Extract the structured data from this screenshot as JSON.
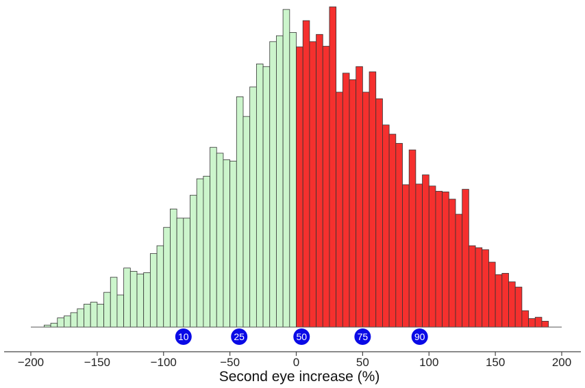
{
  "chart_data": {
    "type": "bar",
    "subtype": "histogram",
    "title": "",
    "xlabel": "Second eye increase (%)",
    "ylabel": "",
    "xlim": [
      -200,
      200
    ],
    "ylim": [
      0,
      470
    ],
    "x_ticks": [
      -200,
      -150,
      -100,
      -50,
      0,
      50,
      100,
      150,
      200
    ],
    "x_tick_labels": [
      "−200",
      "−150",
      "−100",
      "−50",
      "0",
      "50",
      "100",
      "150",
      "200"
    ],
    "y_axis_visible": false,
    "grid": false,
    "legend": "none",
    "bin_width": 5,
    "bin_edges_start": -190,
    "colors": {
      "negative_fill": "#ccf5cc",
      "positive_fill": "#f5302e",
      "bar_stroke": "#333333",
      "marker_fill": "#0a0ae6",
      "axis": "#444444"
    },
    "series": [
      {
        "x": [
          -190,
          -185,
          -180,
          -175,
          -170,
          -165,
          -160,
          -155,
          -150,
          -145,
          -140,
          -135,
          -130,
          -125,
          -120,
          -115,
          -110,
          -105,
          -100,
          -95,
          -90,
          -85,
          -80,
          -75,
          -70,
          -65,
          -60,
          -55,
          -50,
          -45,
          -40,
          -35,
          -30,
          -25,
          -20,
          -15,
          -10,
          -5
        ],
        "values": [
          3,
          6,
          14,
          17,
          22,
          28,
          35,
          38,
          35,
          53,
          76,
          49,
          90,
          85,
          81,
          83,
          112,
          124,
          152,
          180,
          166,
          166,
          201,
          226,
          230,
          274,
          265,
          255,
          253,
          351,
          321,
          366,
          401,
          397,
          435,
          444,
          484,
          449
        ]
      },
      {
        "x": [
          0,
          5,
          10,
          15,
          20,
          25,
          30,
          35,
          40,
          45,
          50,
          55,
          60,
          65,
          70,
          75,
          80,
          85,
          90,
          95,
          100,
          105,
          110,
          115,
          120,
          125,
          130,
          135,
          140,
          145,
          150,
          155,
          160,
          165,
          170,
          175,
          180,
          185
        ],
        "values": [
          427,
          467,
          435,
          446,
          428,
          488,
          358,
          387,
          377,
          397,
          358,
          389,
          348,
          308,
          294,
          280,
          217,
          270,
          218,
          232,
          215,
          207,
          206,
          195,
          172,
          210,
          124,
          121,
          118,
          99,
          80,
          82,
          69,
          61,
          25,
          13,
          15,
          9
        ]
      }
    ],
    "percentile_markers": [
      {
        "label": "10",
        "x": -85
      },
      {
        "label": "25",
        "x": -43
      },
      {
        "label": "50",
        "x": 4
      },
      {
        "label": "75",
        "x": 50
      },
      {
        "label": "90",
        "x": 93
      }
    ]
  }
}
